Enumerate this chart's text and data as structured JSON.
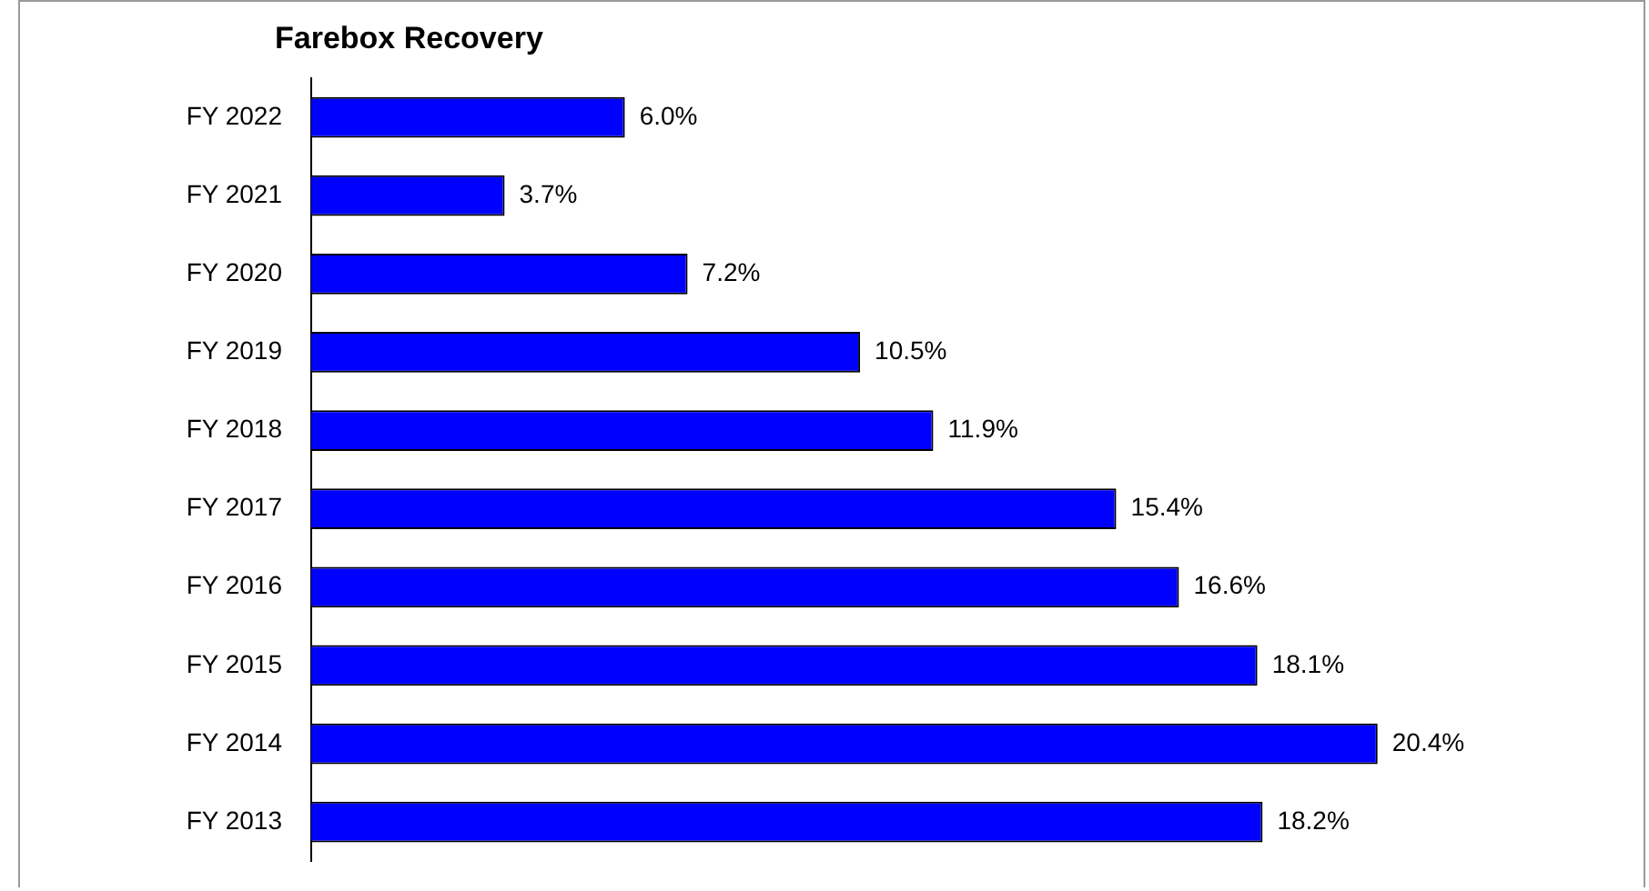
{
  "chart_data": {
    "type": "bar",
    "orientation": "horizontal",
    "title": "Farebox Recovery",
    "categories": [
      "FY 2022",
      "FY 2021",
      "FY 2020",
      "FY 2019",
      "FY 2018",
      "FY 2017",
      "FY 2016",
      "FY 2015",
      "FY 2014",
      "FY 2013"
    ],
    "values": [
      6.0,
      3.7,
      7.2,
      10.5,
      11.9,
      15.4,
      16.6,
      18.1,
      20.4,
      18.2
    ],
    "value_labels": [
      "6.0%",
      "3.7%",
      "7.2%",
      "10.5%",
      "11.9%",
      "15.4%",
      "16.6%",
      "18.1%",
      "20.4%",
      "18.2%"
    ],
    "color": "#0000ff",
    "tick_labels": "y",
    "grid": false,
    "legend": false
  }
}
